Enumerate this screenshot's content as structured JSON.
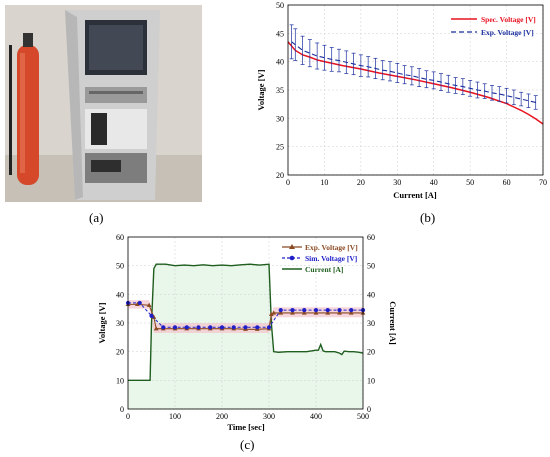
{
  "panels": {
    "a": "(a)",
    "b": "(b)",
    "c": "(c)"
  },
  "colors": {
    "spec_line": "#e8121f",
    "exp_blue": "#1a2e9e",
    "exp_brown": "#8b4a23",
    "sim_blue": "#2020c8",
    "current_green": "#1f5e1f",
    "current_fill": "#e9f6ea",
    "band_pink": "#f3c7cf",
    "cabinet": "#c9c9c9",
    "extinguisher": "#d5482a"
  },
  "photo": {
    "icon": "test-bench-photo"
  },
  "chart_data": [
    {
      "type": "line",
      "title": "",
      "xlabel": "Current [A]",
      "ylabel": "Voltage [V]",
      "xlim": [
        0,
        70
      ],
      "ylim": [
        20,
        50
      ],
      "xticks": [
        0,
        10,
        20,
        30,
        40,
        50,
        60,
        70
      ],
      "yticks": [
        20,
        25,
        30,
        35,
        40,
        45,
        50
      ],
      "grid": true,
      "legend_position": "top-right",
      "series": [
        {
          "name": "Spec. Voltage [V]",
          "style": "solid",
          "x": [
            0,
            2,
            4,
            6,
            8,
            10,
            15,
            20,
            25,
            30,
            35,
            40,
            45,
            50,
            55,
            60,
            62,
            64,
            66,
            68,
            70
          ],
          "y": [
            43.5,
            42.0,
            41.2,
            40.8,
            40.3,
            40.0,
            39.3,
            38.7,
            38.0,
            37.4,
            36.8,
            36.1,
            35.4,
            34.6,
            33.7,
            32.6,
            32.0,
            31.4,
            30.7,
            29.9,
            29.0
          ]
        },
        {
          "name": "Exp. Voltage [V]",
          "style": "dashed-errorbar",
          "x": [
            1,
            2,
            4,
            6,
            8,
            10,
            12,
            14,
            16,
            18,
            20,
            22,
            24,
            26,
            28,
            30,
            32,
            34,
            36,
            38,
            40,
            42,
            44,
            46,
            48,
            50,
            52,
            54,
            56,
            58,
            60,
            62,
            64,
            66,
            68
          ],
          "y": [
            43.5,
            43.0,
            42.0,
            41.5,
            41.0,
            40.7,
            40.4,
            40.2,
            39.9,
            39.6,
            39.3,
            39.1,
            38.8,
            38.5,
            38.3,
            38.0,
            37.7,
            37.5,
            37.2,
            36.9,
            36.7,
            36.4,
            36.1,
            35.8,
            35.6,
            35.3,
            35.0,
            34.8,
            34.5,
            34.3,
            34.0,
            33.7,
            33.4,
            33.1,
            32.8
          ],
          "error": [
            3.0,
            2.8,
            2.5,
            2.4,
            2.3,
            2.2,
            2.1,
            2.0,
            2.0,
            1.9,
            1.9,
            1.8,
            1.8,
            1.7,
            1.7,
            1.7,
            1.6,
            1.6,
            1.6,
            1.5,
            1.5,
            1.5,
            1.5,
            1.4,
            1.4,
            1.4,
            1.4,
            1.3,
            1.3,
            1.3,
            1.3,
            1.3,
            1.2,
            1.2,
            1.2
          ]
        }
      ]
    },
    {
      "type": "line",
      "title": "",
      "xlabel": "Time [sec]",
      "ylabel": "Voltage [V]",
      "y2label": "Current [A]",
      "xlim": [
        0,
        500
      ],
      "ylim": [
        0,
        60
      ],
      "y2lim": [
        0,
        60
      ],
      "xticks": [
        0,
        100,
        200,
        300,
        400,
        500
      ],
      "yticks": [
        0,
        10,
        20,
        30,
        40,
        50,
        60
      ],
      "y2ticks": [
        0,
        10,
        20,
        30,
        40,
        50,
        60
      ],
      "grid": true,
      "legend_position": "top-right",
      "series": [
        {
          "name": "Exp. Voltage [V]",
          "marker": "triangle",
          "x": [
            0,
            20,
            45,
            55,
            60,
            75,
            100,
            125,
            150,
            175,
            200,
            225,
            250,
            275,
            300,
            305,
            310,
            325,
            350,
            375,
            400,
            425,
            450,
            475,
            500
          ],
          "y": [
            36.5,
            36.5,
            36.2,
            32.0,
            28.0,
            28.0,
            28.0,
            28.0,
            28.0,
            28.0,
            28.0,
            28.0,
            27.8,
            27.8,
            28.0,
            33.0,
            33.5,
            33.5,
            33.5,
            33.5,
            33.5,
            33.5,
            33.5,
            33.5,
            33.5
          ]
        },
        {
          "name": "Sim. Voltage [V]",
          "marker": "circle",
          "x": [
            0,
            25,
            50,
            75,
            100,
            125,
            150,
            175,
            200,
            225,
            250,
            275,
            300,
            325,
            350,
            375,
            400,
            425,
            450,
            475,
            500
          ],
          "y": [
            37.0,
            37.0,
            32.5,
            28.5,
            28.5,
            28.5,
            28.5,
            28.5,
            28.5,
            28.5,
            28.5,
            28.5,
            28.5,
            34.5,
            34.5,
            34.5,
            34.5,
            34.5,
            34.5,
            34.5,
            34.5
          ]
        },
        {
          "name": "Current [A]",
          "axis": "right",
          "x": [
            0,
            10,
            20,
            30,
            40,
            47,
            50,
            55,
            60,
            80,
            100,
            120,
            140,
            160,
            180,
            200,
            220,
            240,
            260,
            280,
            300,
            305,
            310,
            320,
            340,
            360,
            380,
            400,
            405,
            410,
            415,
            420,
            430,
            440,
            450,
            455,
            460,
            470,
            480,
            490,
            500
          ],
          "y": [
            10,
            10,
            10,
            10,
            10,
            10,
            30,
            49,
            50.5,
            50.5,
            50,
            50.2,
            50,
            50.3,
            50,
            50.2,
            50,
            50.3,
            50.5,
            50.2,
            50.5,
            30,
            20,
            19.8,
            20,
            20,
            20,
            20.5,
            20.5,
            22.5,
            20.3,
            20,
            20,
            20,
            19.5,
            19,
            20.2,
            20,
            20,
            19.8,
            19.5
          ]
        }
      ]
    }
  ]
}
